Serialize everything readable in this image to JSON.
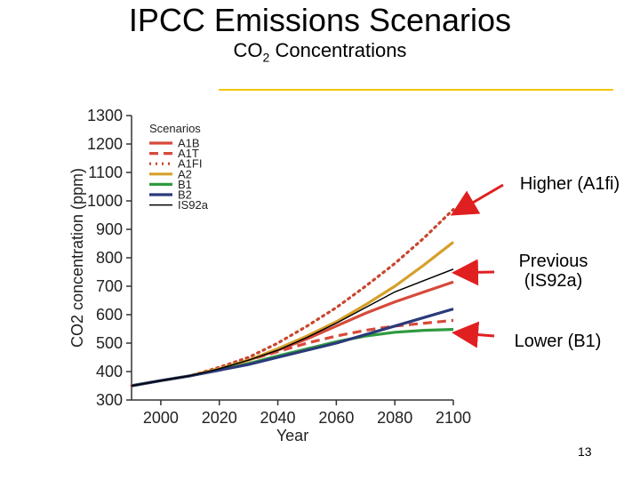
{
  "slide": {
    "title": "IPCC Emissions Scenarios",
    "subtitle_main": "CO",
    "subtitle_sub": "2",
    "subtitle_rest": " Concentrations",
    "page_number": "13"
  },
  "callouts": [
    {
      "line1": "Higher (A1fi)",
      "line2": ""
    },
    {
      "line1": "Previous",
      "line2": "(IS92a)"
    },
    {
      "line1": "Lower (B1)",
      "line2": ""
    }
  ],
  "chart_data": {
    "type": "line",
    "title": "",
    "xlabel": "Year",
    "ylabel": "CO2 concentration (ppm)",
    "xlim": [
      1990,
      2100
    ],
    "ylim": [
      300,
      1300
    ],
    "xticks": [
      2000,
      2020,
      2040,
      2060,
      2080,
      2100
    ],
    "yticks": [
      300,
      400,
      500,
      600,
      700,
      800,
      900,
      1000,
      1100,
      1200,
      1300
    ],
    "legend_title": "Scenarios",
    "legend_position": "top-left",
    "x": [
      1990,
      2000,
      2010,
      2020,
      2030,
      2040,
      2050,
      2060,
      2070,
      2080,
      2090,
      2100
    ],
    "series": [
      {
        "name": "A1B",
        "color": "#d64a3a",
        "dash": "solid",
        "values": [
          350,
          368,
          385,
          410,
          440,
          475,
          515,
          560,
          605,
          645,
          680,
          715
        ]
      },
      {
        "name": "A1T",
        "color": "#d64a3a",
        "dash": "dashed",
        "values": [
          350,
          368,
          385,
          410,
          440,
          470,
          500,
          525,
          545,
          560,
          570,
          580
        ]
      },
      {
        "name": "A1FI",
        "color": "#c8462e",
        "dash": "dotted",
        "values": [
          350,
          368,
          385,
          415,
          450,
          500,
          560,
          625,
          700,
          780,
          870,
          970
        ]
      },
      {
        "name": "A2",
        "color": "#d6a02a",
        "dash": "solid",
        "values": [
          350,
          368,
          385,
          410,
          440,
          480,
          525,
          575,
          635,
          700,
          775,
          855
        ]
      },
      {
        "name": "B1",
        "color": "#2f9a3f",
        "dash": "solid",
        "values": [
          350,
          368,
          385,
          405,
          428,
          455,
          480,
          505,
          525,
          538,
          545,
          548
        ]
      },
      {
        "name": "B2",
        "color": "#2a3a7a",
        "dash": "solid",
        "values": [
          350,
          368,
          385,
          405,
          425,
          450,
          475,
          500,
          530,
          560,
          590,
          620
        ]
      },
      {
        "name": "IS92a",
        "color": "#000000",
        "dash": "solid",
        "values": [
          350,
          368,
          385,
          410,
          440,
          475,
          520,
          570,
          625,
          680,
          720,
          760
        ]
      }
    ]
  }
}
